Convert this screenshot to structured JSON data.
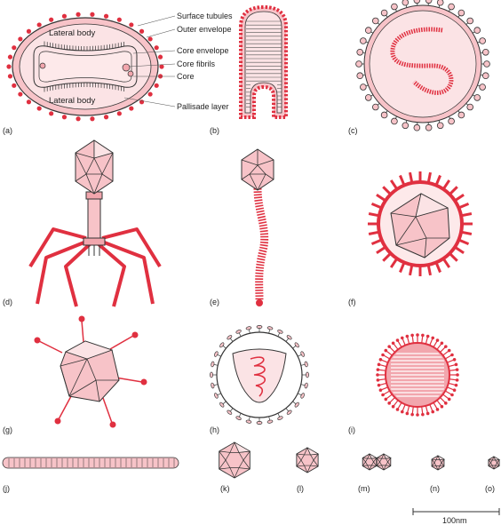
{
  "colors": {
    "red": "#e03040",
    "pink": "#f7c3c8",
    "pale": "#fbe3e5",
    "mid": "#f2a6ad",
    "line": "#333333"
  },
  "panel_labels": [
    "(a)",
    "(b)",
    "(c)",
    "(d)",
    "(e)",
    "(f)",
    "(g)",
    "(h)",
    "(i)",
    "(j)",
    "(k)",
    "(l)",
    "(m)",
    "(n)",
    "(o)"
  ],
  "annotations": {
    "surface_tubules": "Surface tubules",
    "outer_envelope": "Outer envelope",
    "core_envelope": "Core envelope",
    "core_fibrils": "Core fibrils",
    "core": "Core",
    "pallisade_layer": "Pallisade layer",
    "lateral_body_top": "Lateral body",
    "lateral_body_bottom": "Lateral body"
  },
  "scale_bar": {
    "label": "100nm"
  }
}
